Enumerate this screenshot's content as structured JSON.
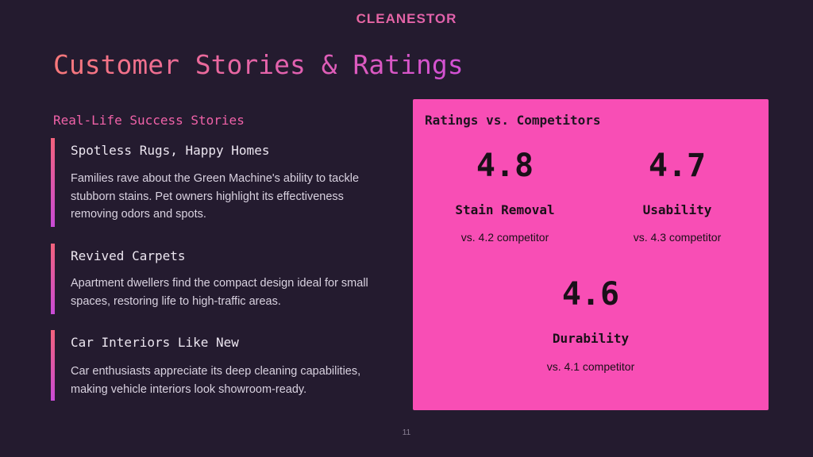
{
  "logo": {
    "text": "CLEANESTOR"
  },
  "header": {
    "title": "Customer Stories & Ratings"
  },
  "stories": {
    "heading": "Real-Life Success Stories",
    "items": [
      {
        "title": "Spotless Rugs, Happy Homes",
        "text": "Families rave about the Green Machine's ability to tackle stubborn stains. Pet owners highlight its effectiveness removing odors and spots."
      },
      {
        "title": "Revived Carpets",
        "text": "Apartment dwellers find the compact design ideal for small spaces, restoring life to high-traffic areas."
      },
      {
        "title": "Car Interiors Like New",
        "text": "Car enthusiasts appreciate its deep cleaning capabilities, making vehicle interiors look showroom-ready."
      }
    ]
  },
  "ratings": {
    "heading": "Ratings vs. Competitors",
    "items": [
      {
        "score": "4.8",
        "label": "Stain Removal",
        "comparison": "vs. 4.2 competitor"
      },
      {
        "score": "4.7",
        "label": "Usability",
        "comparison": "vs. 4.3 competitor"
      },
      {
        "score": "4.6",
        "label": "Durability",
        "comparison": "vs. 4.1 competitor"
      }
    ]
  },
  "footer": {
    "page_number": "11"
  }
}
